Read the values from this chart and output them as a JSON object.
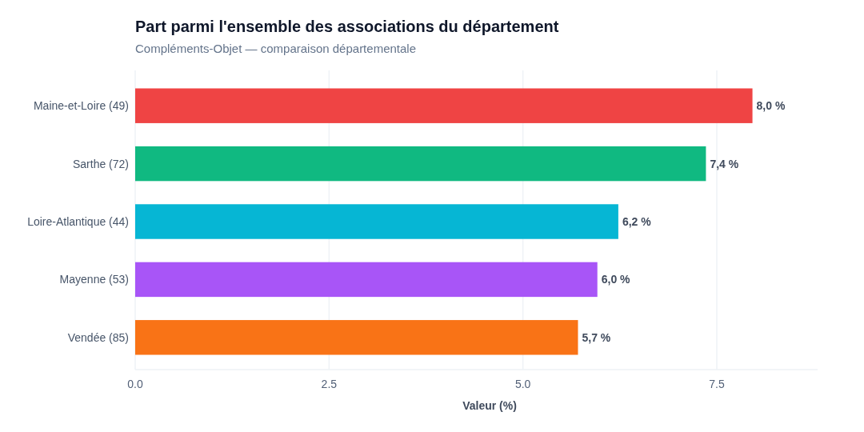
{
  "chart_data": {
    "type": "bar",
    "orientation": "horizontal",
    "title": "Part parmi l'ensemble des associations du département",
    "subtitle": "Compléments-Objet — comparaison départementale",
    "xlabel": "Valeur (%)",
    "categories": [
      "Maine-et-Loire (49)",
      "Sarthe (72)",
      "Loire-Atlantique (44)",
      "Mayenne (53)",
      "Vendée (85)"
    ],
    "values": [
      7.96,
      7.36,
      6.23,
      5.96,
      5.71
    ],
    "colors": [
      "#ef4444",
      "#10b981",
      "#06b6d4",
      "#a855f7",
      "#f97316"
    ],
    "value_labels": [
      "8,0 %",
      "7,4 %",
      "6,2 %",
      "6,0 %",
      "5,7 %"
    ],
    "xlim": [
      0,
      8.8
    ],
    "xticks": [
      {
        "value": 0,
        "label": "0.0"
      },
      2.5,
      {
        "value": 5,
        "label": "5.0"
      },
      7.5
    ],
    "grid": "x"
  }
}
